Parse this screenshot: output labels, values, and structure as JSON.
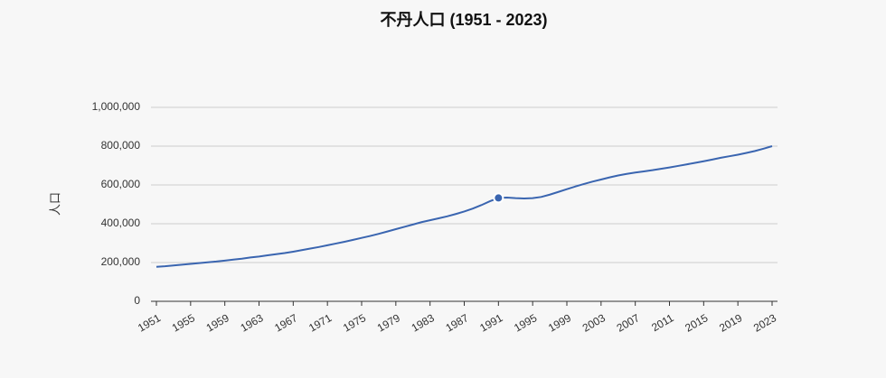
{
  "chart_data": {
    "type": "line",
    "title": "不丹人口 (1951 - 2023)",
    "y_label": "人口",
    "x": [
      1951,
      1952,
      1953,
      1954,
      1955,
      1956,
      1957,
      1958,
      1959,
      1960,
      1961,
      1962,
      1963,
      1964,
      1965,
      1966,
      1967,
      1968,
      1969,
      1970,
      1971,
      1972,
      1973,
      1974,
      1975,
      1976,
      1977,
      1978,
      1979,
      1980,
      1981,
      1982,
      1983,
      1984,
      1985,
      1986,
      1987,
      1988,
      1989,
      1990,
      1991,
      1992,
      1993,
      1994,
      1995,
      1996,
      1997,
      1998,
      1999,
      2000,
      2001,
      2002,
      2003,
      2004,
      2005,
      2006,
      2007,
      2008,
      2009,
      2010,
      2011,
      2012,
      2013,
      2014,
      2015,
      2016,
      2017,
      2018,
      2019,
      2020,
      2021,
      2022,
      2023
    ],
    "series": [
      {
        "name": "人口",
        "color": "#3a65b0",
        "values": [
          178000,
          181000,
          185000,
          189000,
          193000,
          197000,
          201000,
          205000,
          210000,
          215000,
          220000,
          226000,
          231000,
          237000,
          243000,
          249000,
          256000,
          264000,
          272000,
          280000,
          289000,
          298000,
          307000,
          317000,
          327000,
          337000,
          348000,
          360000,
          372000,
          384000,
          396000,
          408000,
          418000,
          428000,
          438000,
          450000,
          463000,
          478000,
          496000,
          516000,
          533000,
          535000,
          532000,
          530000,
          532000,
          538000,
          550000,
          564000,
          578000,
          592000,
          605000,
          617000,
          628000,
          639000,
          649000,
          657000,
          664000,
          670000,
          676000,
          683000,
          690000,
          698000,
          706000,
          714000,
          722000,
          731000,
          740000,
          748000,
          756000,
          765000,
          775000,
          787000,
          800000
        ]
      }
    ],
    "xlim": [
      1951,
      2023
    ],
    "xticks": [
      1951,
      1955,
      1959,
      1963,
      1967,
      1971,
      1975,
      1979,
      1983,
      1987,
      1991,
      1995,
      1999,
      2003,
      2007,
      2011,
      2015,
      2019,
      2023
    ],
    "ylim": [
      0,
      1000000
    ],
    "yticks": [
      0,
      {
        "value": 200000,
        "label": "200,000"
      },
      {
        "value": 400000,
        "label": "400,000"
      },
      {
        "value": 600000,
        "label": "600,000"
      },
      {
        "value": 800000,
        "label": "800,000"
      },
      {
        "value": 1000000,
        "label": "1,000,000"
      }
    ],
    "grid": true
  }
}
